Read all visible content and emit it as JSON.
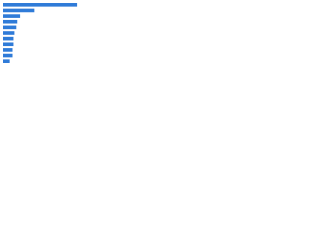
{
  "chart_data": {
    "type": "hbar",
    "categories": [
      null,
      null,
      null,
      null,
      null,
      null,
      null,
      null,
      null,
      null,
      null
    ],
    "values": [
      78,
      33,
      18,
      15,
      14,
      12,
      11,
      11,
      10,
      10,
      7
    ],
    "color": "#2f7bd8",
    "xlim": [
      0,
      100
    ]
  }
}
